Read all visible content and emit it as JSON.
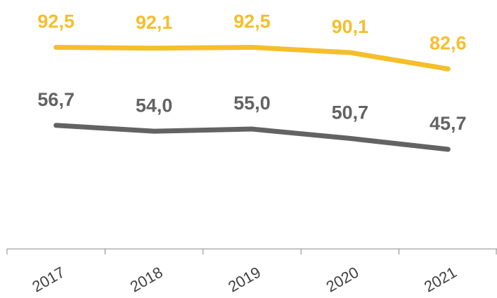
{
  "chart_data": {
    "type": "line",
    "categories": [
      "2017",
      "2018",
      "2019",
      "2020",
      "2021"
    ],
    "series": [
      {
        "color": "#f5bf2a",
        "values": [
          92.5,
          92.1,
          92.5,
          90.1,
          82.6
        ],
        "value_labels": [
          "92,5",
          "92,1",
          "92,5",
          "90,1",
          "82,6"
        ]
      },
      {
        "color": "#636363",
        "values": [
          56.7,
          54.0,
          55.0,
          50.7,
          45.7
        ],
        "value_labels": [
          "56,7",
          "54,0",
          "55,0",
          "50,7",
          "45,7"
        ]
      }
    ],
    "ylim": [
      0,
      111
    ]
  }
}
